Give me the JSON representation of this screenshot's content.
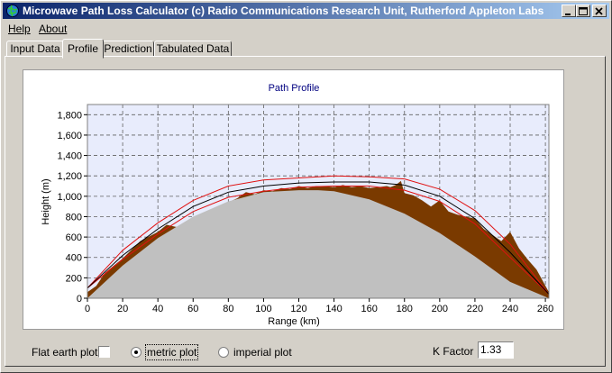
{
  "window": {
    "title": "Microwave Path Loss Calculator  (c) Radio Communications Research Unit, Rutherford Appleton Labs"
  },
  "menu": [
    {
      "label": "Help"
    },
    {
      "label": "About"
    }
  ],
  "tabs": [
    {
      "label": "Input Data",
      "active": false
    },
    {
      "label": "Profile",
      "active": true
    },
    {
      "label": "Prediction",
      "active": false
    },
    {
      "label": "Tabulated Data",
      "active": false
    }
  ],
  "controls": {
    "flat_earth_label": "Flat earth plot",
    "flat_earth_checked": false,
    "metric_label": "metric plot",
    "imperial_label": "imperial plot",
    "selected_unit": "metric",
    "kfactor_label": "K Factor",
    "kfactor_value": "1.33"
  },
  "chart_data": {
    "type": "area",
    "title": "Path Profile",
    "xlabel": "Range (km)",
    "ylabel": "Height (m)",
    "xlim": [
      0,
      262
    ],
    "ylim": [
      0,
      1900
    ],
    "xticks": [
      0,
      20,
      40,
      60,
      80,
      100,
      120,
      140,
      160,
      180,
      200,
      220,
      240,
      260
    ],
    "yticks": [
      0,
      200,
      400,
      600,
      800,
      1000,
      1200,
      1400,
      1600,
      1800
    ],
    "ytick_labels": [
      "0",
      "200",
      "400",
      "600",
      "800",
      "1,000",
      "1,200",
      "1,400",
      "1,600",
      "1,800"
    ],
    "grid": true,
    "colors": {
      "plot_bg": "#e8ecfc",
      "earth": "#c0c0c0",
      "terrain": "#7a3a00",
      "fresnel": "#e01010",
      "line_of_sight": "#000000",
      "title": "#000080"
    },
    "series": [
      {
        "role": "earth_bulge",
        "x": [
          0,
          20,
          40,
          60,
          80,
          100,
          120,
          131,
          140,
          160,
          180,
          200,
          220,
          240,
          262
        ],
        "y": [
          0,
          320,
          590,
          800,
          950,
          1040,
          1060,
          1060,
          1050,
          970,
          830,
          640,
          410,
          160,
          0
        ]
      },
      {
        "role": "terrain",
        "x": [
          0,
          5,
          10,
          20,
          30,
          40,
          45,
          50,
          55,
          60,
          65,
          70,
          75,
          80,
          85,
          90,
          95,
          100,
          105,
          110,
          115,
          120,
          125,
          130,
          135,
          140,
          145,
          150,
          155,
          160,
          165,
          170,
          172,
          175,
          178,
          180,
          185,
          190,
          195,
          200,
          205,
          210,
          215,
          220,
          225,
          230,
          235,
          240,
          245,
          250,
          255,
          262
        ],
        "y": [
          60,
          120,
          250,
          390,
          560,
          650,
          720,
          700,
          690,
          720,
          760,
          800,
          900,
          940,
          980,
          1040,
          1020,
          1060,
          1050,
          1080,
          1070,
          1100,
          1080,
          1100,
          1100,
          1090,
          1110,
          1090,
          1100,
          1080,
          1090,
          1100,
          1090,
          1110,
          1150,
          1030,
          1010,
          960,
          900,
          960,
          850,
          820,
          800,
          780,
          680,
          620,
          560,
          650,
          490,
          380,
          280,
          60
        ]
      },
      {
        "role": "line_of_sight",
        "x": [
          0,
          20,
          40,
          60,
          80,
          100,
          120,
          140,
          160,
          180,
          200,
          220,
          240,
          262
        ],
        "y": [
          100,
          420,
          680,
          900,
          1040,
          1100,
          1130,
          1140,
          1140,
          1110,
          1000,
          780,
          450,
          40
        ]
      },
      {
        "role": "fresnel_upper",
        "x": [
          0,
          20,
          40,
          60,
          80,
          100,
          120,
          140,
          160,
          180,
          200,
          220,
          240,
          262
        ],
        "y": [
          100,
          470,
          740,
          960,
          1100,
          1160,
          1180,
          1200,
          1190,
          1170,
          1070,
          860,
          530,
          40
        ]
      },
      {
        "role": "fresnel_lower",
        "x": [
          0,
          20,
          40,
          60,
          80,
          100,
          120,
          140,
          160,
          180,
          200,
          220,
          240,
          262
        ],
        "y": [
          100,
          380,
          630,
          850,
          990,
          1050,
          1090,
          1100,
          1100,
          1060,
          950,
          730,
          400,
          40
        ]
      }
    ]
  }
}
